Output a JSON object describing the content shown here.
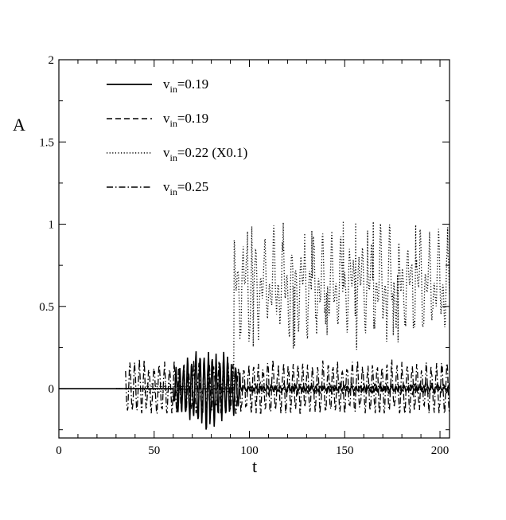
{
  "chart_data": {
    "type": "line",
    "xlabel": "t",
    "ylabel": "A",
    "xlim": [
      0,
      205
    ],
    "ylim": [
      -0.3,
      2.0
    ],
    "x_ticks": [
      0,
      50,
      100,
      150,
      200
    ],
    "x_tick_labels": [
      "0",
      "50",
      "100",
      "150",
      "200"
    ],
    "y_ticks": [
      0,
      0.5,
      1,
      1.5,
      2
    ],
    "y_tick_labels": [
      "0",
      "0.5",
      "1",
      "1.5",
      "2"
    ],
    "grid": false,
    "legend_position": "top-left",
    "series": [
      {
        "name": "v_in=0.19",
        "legend_base": "v",
        "legend_sub": "in",
        "legend_rest": "=0.19",
        "line_style": "solid",
        "signal": {
          "t_start": 0,
          "t_end": 205,
          "dt": 0.25,
          "baseline": 0.0,
          "osc_start": 60,
          "osc_end": 95,
          "amplitude": 0.2,
          "tail_amplitude": 0.015,
          "period": 2.1
        }
      },
      {
        "name": "v_in=0.19",
        "legend_base": "v",
        "legend_sub": "in",
        "legend_rest": "=0.19",
        "line_style": "dashed",
        "signal": {
          "t_start": 30,
          "t_end": 205,
          "dt": 0.25,
          "baseline": 0.0,
          "osc_start": 95,
          "osc_end": 205,
          "amplitude": 0.03,
          "tail_amplitude": 0.03,
          "period": 3.0
        }
      },
      {
        "name": "v_in=0.22 (X0.1)",
        "legend_base": "v",
        "legend_sub": "in",
        "legend_rest": "=0.22 (X0.1)",
        "line_style": "dotted",
        "signal": {
          "t_start": 30,
          "t_end": 205,
          "dt": 0.25,
          "baseline": 0.0,
          "jump_t": 92,
          "jump_level": 0.63,
          "amplitude": 0.3,
          "period": 3.2,
          "min": 0.23,
          "max": 1.02
        }
      },
      {
        "name": "v_in=0.25",
        "legend_base": "v",
        "legend_sub": "in",
        "legend_rest": "=0.25",
        "line_style": "dashdot",
        "signal": {
          "t_start": 35,
          "t_end": 205,
          "dt": 0.25,
          "baseline": 0.0,
          "osc_start": 35,
          "osc_end": 205,
          "amplitude": 0.15,
          "tail_amplitude": 0.15,
          "period": 2.6,
          "min": -0.15,
          "max": 0.19
        }
      }
    ]
  }
}
